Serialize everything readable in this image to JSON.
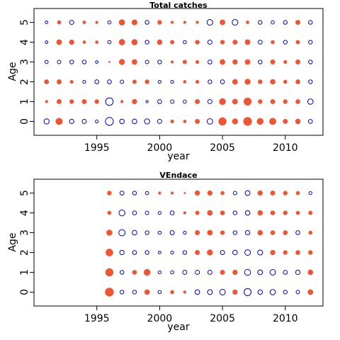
{
  "chart_data": [
    {
      "type": "scatter",
      "title": "Total catches",
      "xlabel": "year",
      "ylabel": "Age",
      "xlim": [
        1990,
        2013
      ],
      "ylim": [
        -0.7,
        5.7
      ],
      "xticks": [
        1995,
        2000,
        2005,
        2010
      ],
      "yticks": [
        0,
        1,
        2,
        3,
        4,
        5
      ],
      "colors": {
        "positive": "#ee5533",
        "negative": "#0000cc"
      },
      "legend": "none",
      "grid": false,
      "x": [
        1991,
        1992,
        1993,
        1994,
        1995,
        1996,
        1997,
        1998,
        1999,
        2000,
        2001,
        2002,
        2003,
        2004,
        2005,
        2006,
        2007,
        2008,
        2009,
        2010,
        2011,
        2012
      ],
      "ages": [
        0,
        1,
        2,
        3,
        4,
        5
      ],
      "residuals": [
        [
          -1.5,
          2.2,
          -1.1,
          -1.0,
          -0.5,
          -3.5,
          -1.2,
          -1.2,
          -1.5,
          -1.0,
          0.5,
          0.4,
          1.0,
          -1.7,
          3.0,
          1.5,
          3.5,
          2.0,
          2.2,
          1.0,
          1.2,
          -0.9
        ],
        [
          0.3,
          1.0,
          0.8,
          1.0,
          0.8,
          -3.2,
          0.3,
          1.1,
          -0.3,
          -0.9,
          -0.7,
          -0.6,
          1.0,
          -1.0,
          2.0,
          1.3,
          2.8,
          0.8,
          1.0,
          0.8,
          0.9,
          -1.6
        ],
        [
          0.9,
          1.0,
          0.5,
          -0.5,
          -0.9,
          -0.9,
          -0.7,
          0.7,
          0.8,
          -0.5,
          -0.5,
          0.4,
          0.5,
          -0.8,
          -0.9,
          1.3,
          1.5,
          0.8,
          1.2,
          0.6,
          0.9,
          -0.8
        ],
        [
          -0.6,
          -0.7,
          -0.8,
          -0.8,
          -0.4,
          0.0,
          1.5,
          1.3,
          -0.7,
          -0.8,
          0.3,
          0.7,
          0.5,
          -0.9,
          1.3,
          1.1,
          1.3,
          -0.8,
          1.0,
          0.5,
          1.0,
          -0.8
        ],
        [
          -0.4,
          1.3,
          1.1,
          0.4,
          0.4,
          -0.6,
          1.7,
          1.6,
          -0.8,
          1.2,
          0.7,
          -0.6,
          0.8,
          -1.0,
          0.8,
          1.0,
          1.3,
          -0.9,
          0.6,
          -0.8,
          0.7,
          -0.8
        ],
        [
          -0.4,
          0.6,
          -1.0,
          0.4,
          0.3,
          -0.6,
          1.6,
          1.4,
          -0.8,
          0.8,
          0.3,
          0.3,
          0.3,
          -1.8,
          1.3,
          -1.8,
          0.4,
          -0.8,
          -0.6,
          -0.8,
          1.0,
          -0.8
        ]
      ]
    },
    {
      "type": "scatter",
      "title": "VEndace",
      "xlabel": "year",
      "ylabel": "Age",
      "xlim": [
        1990,
        2013
      ],
      "ylim": [
        -0.7,
        5.7
      ],
      "xticks": [
        1995,
        2000,
        2005,
        2010
      ],
      "yticks": [
        0,
        1,
        2,
        3,
        4,
        5
      ],
      "colors": {
        "positive": "#ee5533",
        "negative": "#0000cc"
      },
      "legend": "none",
      "grid": false,
      "x": [
        1996,
        1997,
        1998,
        1999,
        2000,
        2001,
        2002,
        2003,
        2004,
        2005,
        2006,
        2007,
        2008,
        2009,
        2010,
        2011,
        2012
      ],
      "ages": [
        0,
        1,
        2,
        3,
        4,
        5
      ],
      "residuals": [
        [
          3.6,
          -0.8,
          -0.8,
          1.2,
          -0.6,
          0.6,
          0.3,
          -1.2,
          -1.3,
          -1.8,
          1.1,
          -2.8,
          -1.2,
          -1.6,
          -0.8,
          -0.7,
          1.3
        ],
        [
          3.0,
          -0.8,
          0.9,
          2.0,
          -0.5,
          -0.6,
          -1.0,
          -1.0,
          -1.0,
          1.0,
          1.1,
          -2.0,
          -1.3,
          -1.7,
          -0.9,
          -1.1,
          1.2
        ],
        [
          2.6,
          -1.1,
          -0.9,
          -0.8,
          -0.4,
          -0.5,
          -0.8,
          1.0,
          1.5,
          -1.0,
          -1.2,
          -1.8,
          -1.4,
          1.1,
          0.8,
          0.9,
          0.8
        ],
        [
          1.6,
          -2.2,
          -1.2,
          -0.8,
          -0.6,
          -1.0,
          -0.5,
          1.0,
          1.3,
          0.8,
          -0.8,
          -1.1,
          1.2,
          0.9,
          0.9,
          -0.9,
          0.6
        ],
        [
          0.6,
          -2.0,
          -0.9,
          -0.7,
          -0.5,
          -0.9,
          0.3,
          0.7,
          1.3,
          0.9,
          -0.8,
          -1.2,
          1.2,
          0.9,
          0.8,
          0.6,
          0.7
        ],
        [
          0.8,
          -0.9,
          -0.8,
          -0.6,
          0.3,
          0.3,
          0.0,
          1.1,
          1.1,
          0.6,
          -0.7,
          -1.3,
          1.1,
          1.0,
          0.8,
          0.6,
          -0.5
        ]
      ]
    }
  ]
}
